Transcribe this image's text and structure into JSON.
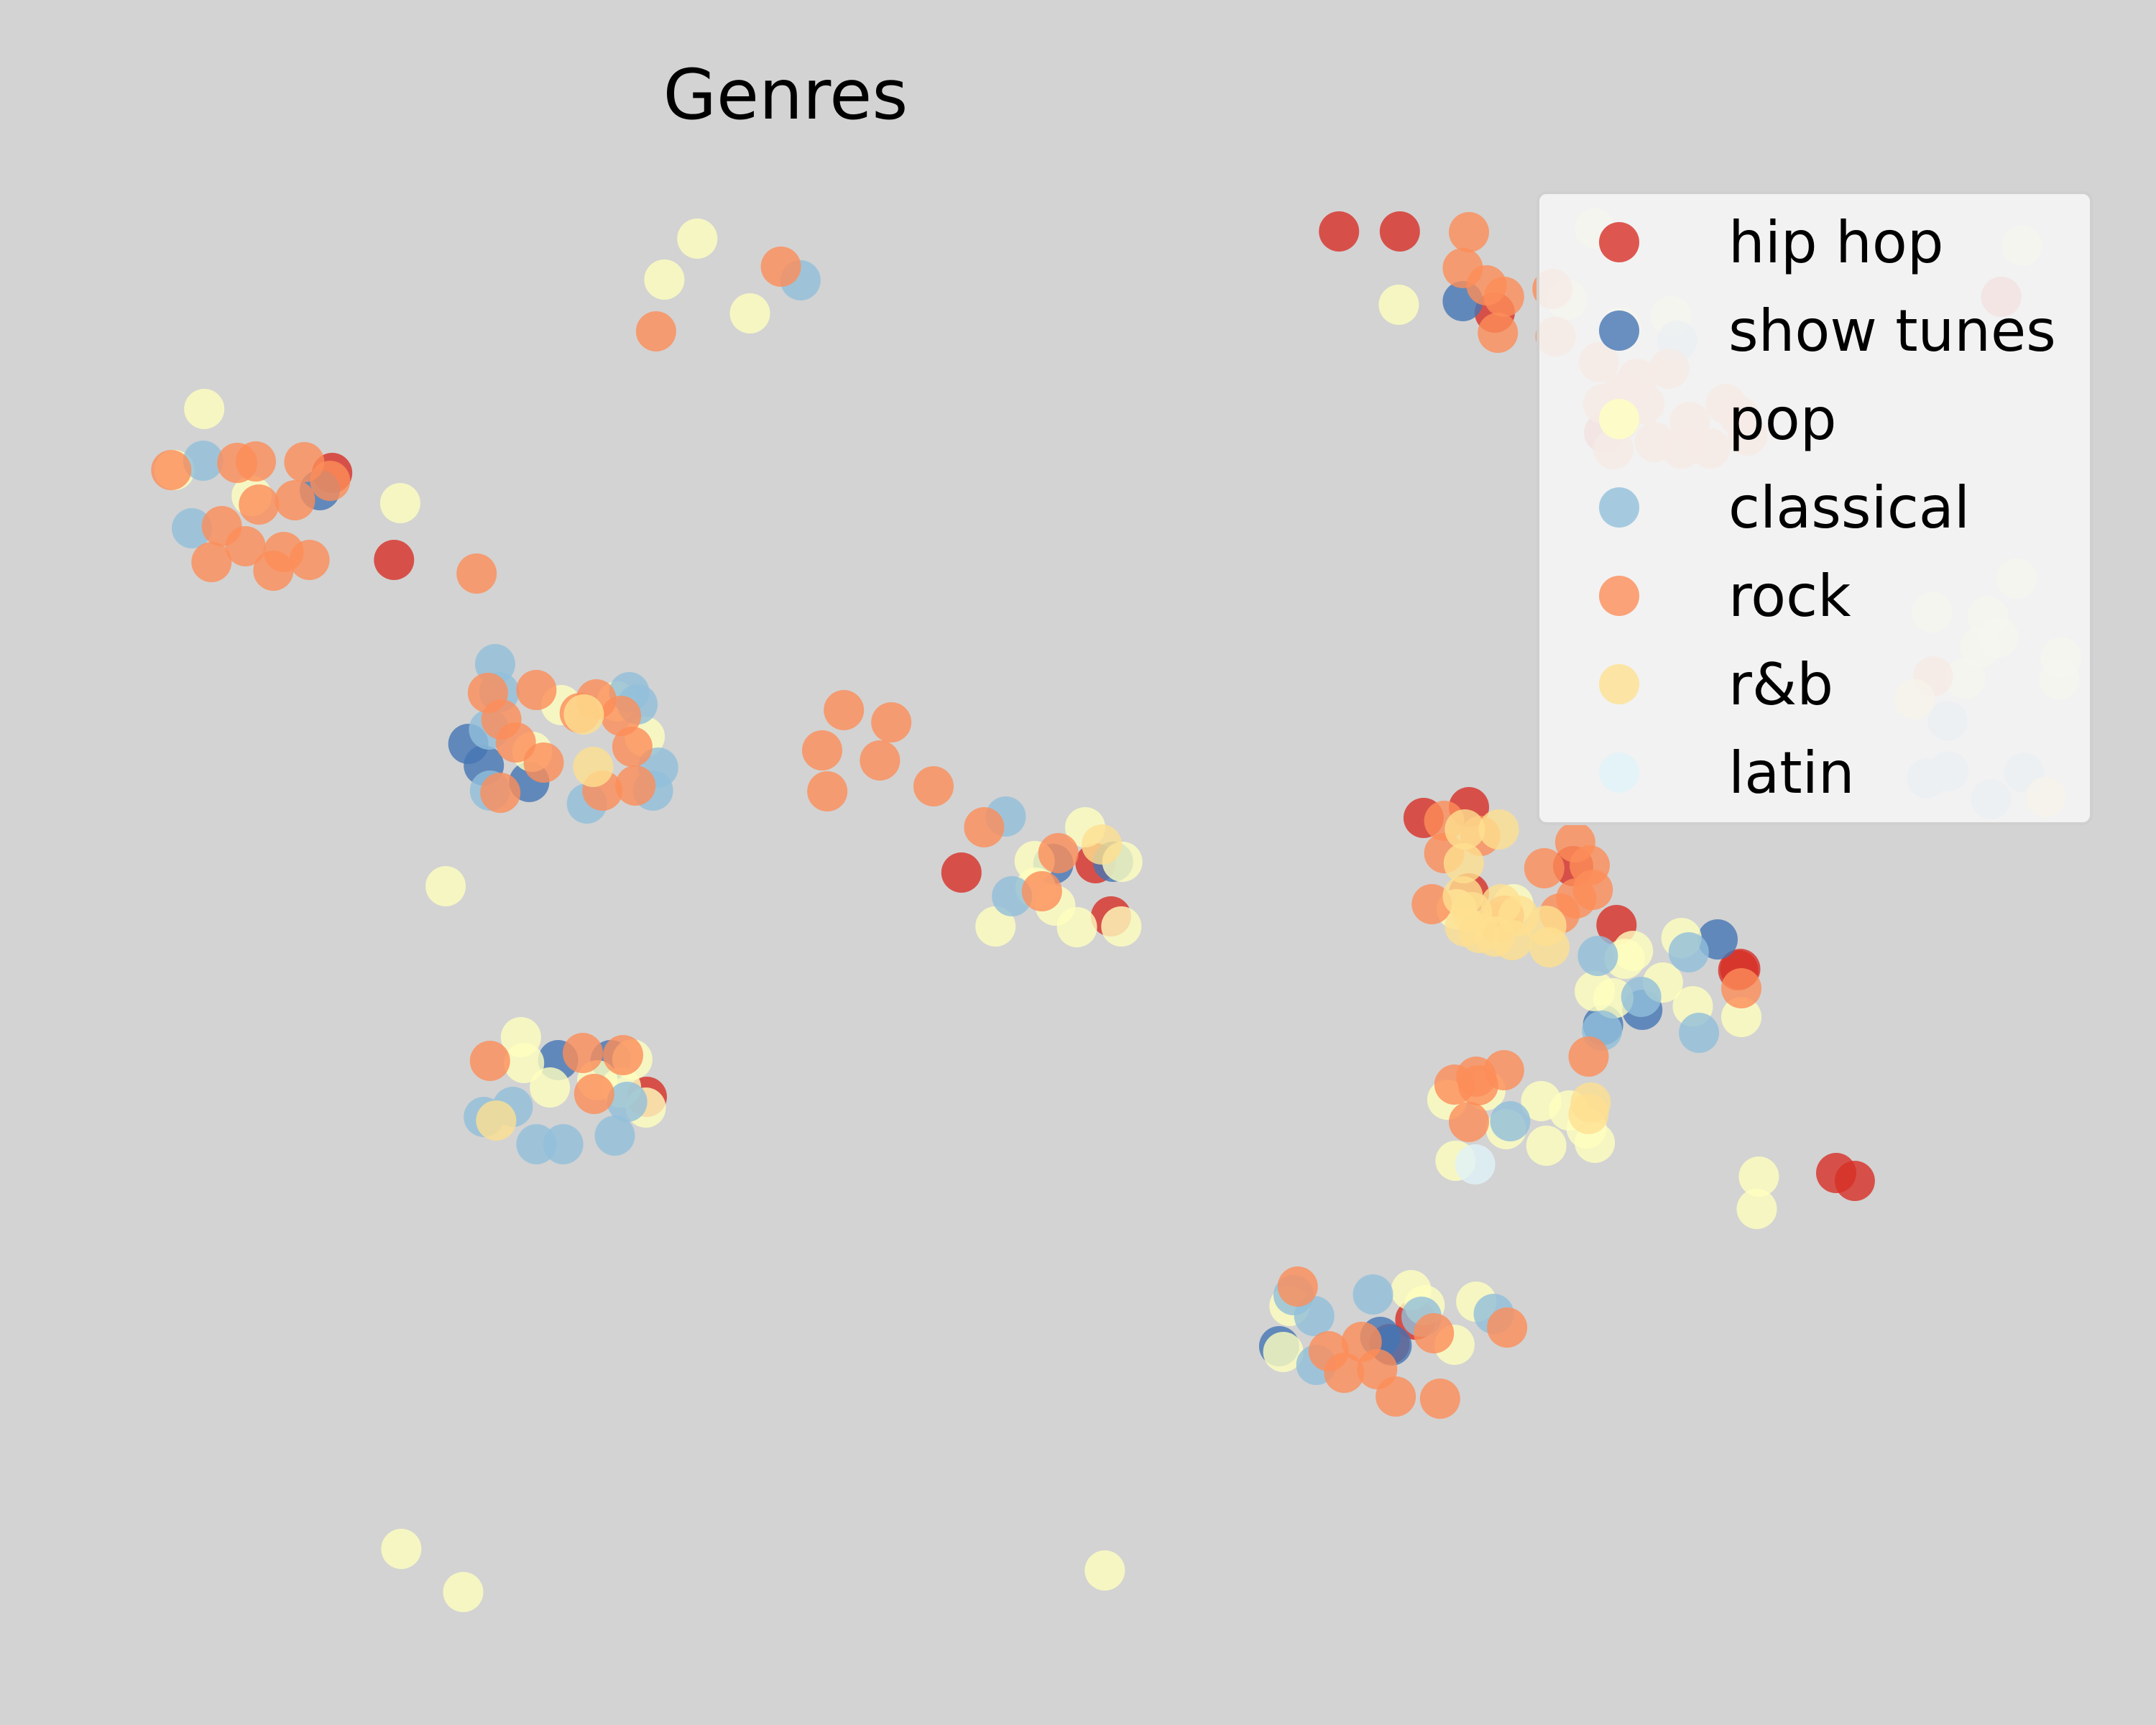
{
  "chart_data": {
    "type": "scatter",
    "title": "Genres",
    "xlabel": "",
    "ylabel": "",
    "xlim": [
      0,
      2090
    ],
    "ylim": [
      0,
      2400
    ],
    "axes_visible": false,
    "grid": false,
    "legend_position": "top-right",
    "background_color": "#d3d3d3",
    "series": [
      {
        "name": "hip hop",
        "color": "#d73027",
        "points": [
          [
            1298,
            2078
          ],
          [
            1357,
            2078
          ],
          [
            1940,
            1987
          ],
          [
            322,
            1742
          ],
          [
            382,
            1621
          ],
          [
            1555,
            1798
          ],
          [
            1449,
            1965
          ],
          [
            932,
            1186
          ],
          [
            1062,
            1199
          ],
          [
            1380,
            1262
          ],
          [
            1567,
            1113
          ],
          [
            1687,
            1052
          ],
          [
            627,
            874
          ],
          [
            1780,
            768
          ],
          [
            1798,
            757
          ],
          [
            1372,
            564
          ],
          [
            1424,
            1277
          ],
          [
            1424,
            1157
          ],
          [
            1077,
            1125
          ],
          [
            1525,
            1195
          ],
          [
            1685,
            1050
          ],
          [
            1347,
            530
          ]
        ]
      },
      {
        "name": "show tunes",
        "color": "#4575b4",
        "points": [
          [
            1418,
            1981
          ],
          [
            310,
            1718
          ],
          [
            454,
            1365
          ],
          [
            513,
            1312
          ],
          [
            1021,
            1198
          ],
          [
            1079,
            1201
          ],
          [
            1665,
            1093
          ],
          [
            1554,
            974
          ],
          [
            1592,
            995
          ],
          [
            592,
            925
          ],
          [
            541,
            925
          ],
          [
            1240,
            527
          ],
          [
            1338,
            540
          ],
          [
            1349,
            528
          ],
          [
            469,
            1335
          ]
        ]
      },
      {
        "name": "pop",
        "color": "#ffffbf",
        "points": [
          [
            676,
            2068
          ],
          [
            644,
            2011
          ],
          [
            727,
            1964
          ],
          [
            1546,
            2082
          ],
          [
            1960,
            2058
          ],
          [
            1356,
            1976
          ],
          [
            1519,
            1983
          ],
          [
            198,
            1831
          ],
          [
            388,
            1700
          ],
          [
            169,
            1746
          ],
          [
            1955,
            1595
          ],
          [
            1873,
            1548
          ],
          [
            1927,
            1542
          ],
          [
            1920,
            1500
          ],
          [
            1998,
            1485
          ],
          [
            1996,
            1455
          ],
          [
            1937,
            1513
          ],
          [
            1905,
            1456
          ],
          [
            432,
            1167
          ],
          [
            544,
            1419
          ],
          [
            516,
            1354
          ],
          [
            598,
            1424
          ],
          [
            625,
            1375
          ],
          [
            965,
            1111
          ],
          [
            1052,
            1249
          ],
          [
            1088,
            1201
          ],
          [
            1003,
            1202
          ],
          [
            1023,
            1140
          ],
          [
            1044,
            1110
          ],
          [
            1087,
            1111
          ],
          [
            1575,
            1066
          ],
          [
            1612,
            1033
          ],
          [
            1630,
            1095
          ],
          [
            1546,
            1021
          ],
          [
            1583,
            1077
          ],
          [
            1641,
            1000
          ],
          [
            1688,
            985
          ],
          [
            1564,
            1011
          ],
          [
            505,
            957
          ],
          [
            533,
            887
          ],
          [
            602,
            887
          ],
          [
            613,
            926
          ],
          [
            579,
            897
          ],
          [
            508,
            921
          ],
          [
            626,
            859
          ],
          [
            1403,
            870
          ],
          [
            1440,
            883
          ],
          [
            1494,
            868
          ],
          [
            1521,
            855
          ],
          [
            1538,
            830
          ],
          [
            1460,
            829
          ],
          [
            1499,
            806
          ],
          [
            1546,
            810
          ],
          [
            1411,
            785
          ],
          [
            1705,
            763
          ],
          [
            1703,
            718
          ],
          [
            1381,
            584
          ],
          [
            1431,
            589
          ],
          [
            1244,
            519
          ],
          [
            1368,
            605
          ],
          [
            1410,
            529
          ],
          [
            1250,
            583
          ],
          [
            389,
            245
          ],
          [
            449,
            185
          ],
          [
            1071,
            215
          ],
          [
            1620,
            1960
          ],
          [
            1571,
            1945
          ],
          [
            244,
            1710
          ],
          [
            1412,
            1135
          ],
          [
            1467,
            1142
          ],
          [
            1004,
            1165
          ]
        ]
      },
      {
        "name": "classical",
        "color": "#91bfdb",
        "points": [
          [
            776,
            2010
          ],
          [
            1626,
            1926
          ],
          [
            197,
            1759
          ],
          [
            186,
            1665
          ],
          [
            484,
            1437
          ],
          [
            610,
            1437
          ],
          [
            475,
            1300
          ],
          [
            633,
            1300
          ],
          [
            474,
            1385
          ],
          [
            569,
            1282
          ],
          [
            638,
            1332
          ],
          [
            975,
            1264
          ],
          [
            981,
            1153
          ],
          [
            1549,
            1070
          ],
          [
            1591,
            1013
          ],
          [
            1637,
            1075
          ],
          [
            1553,
            966
          ],
          [
            1647,
            963
          ],
          [
            1888,
            1397
          ],
          [
            1868,
            1317
          ],
          [
            1889,
            1327
          ],
          [
            1962,
            1325
          ],
          [
            1930,
            1288
          ],
          [
            480,
            1476
          ],
          [
            618,
            1420
          ],
          [
            520,
            808
          ],
          [
            546,
            808
          ],
          [
            596,
            820
          ],
          [
            608,
            867
          ],
          [
            469,
            846
          ],
          [
            497,
            860
          ],
          [
            1254,
            598
          ],
          [
            1331,
            599
          ],
          [
            1274,
            569
          ],
          [
            1276,
            501
          ],
          [
            1378,
            568
          ],
          [
            1448,
            572
          ],
          [
            1464,
            840
          ]
        ]
      },
      {
        "name": "rock",
        "color": "#fc8d59",
        "points": [
          [
            757,
            2029
          ],
          [
            636,
            1939
          ],
          [
            1424,
            2077
          ],
          [
            1418,
            2027
          ],
          [
            1441,
            2003
          ],
          [
            1458,
            1987
          ],
          [
            1452,
            1937
          ],
          [
            1508,
            1932
          ],
          [
            1505,
            1998
          ],
          [
            1550,
            1896
          ],
          [
            1587,
            1873
          ],
          [
            1618,
            1887
          ],
          [
            1594,
            1838
          ],
          [
            1554,
            1838
          ],
          [
            1673,
            1838
          ],
          [
            1686,
            1821
          ],
          [
            1694,
            1794
          ],
          [
            1604,
            1785
          ],
          [
            1630,
            1776
          ],
          [
            1564,
            1775
          ],
          [
            1570,
            1815
          ],
          [
            1572,
            1853
          ],
          [
            1638,
            1813
          ],
          [
            1658,
            1776
          ],
          [
            166,
            1746
          ],
          [
            230,
            1756
          ],
          [
            248,
            1758
          ],
          [
            295,
            1757
          ],
          [
            320,
            1731
          ],
          [
            286,
            1704
          ],
          [
            251,
            1698
          ],
          [
            215,
            1668
          ],
          [
            238,
            1640
          ],
          [
            275,
            1632
          ],
          [
            300,
            1621
          ],
          [
            205,
            1618
          ],
          [
            265,
            1606
          ],
          [
            462,
            1602
          ],
          [
            473,
            1436
          ],
          [
            520,
            1440
          ],
          [
            578,
            1427
          ],
          [
            602,
            1404
          ],
          [
            486,
            1399
          ],
          [
            562,
            1408
          ],
          [
            500,
            1367
          ],
          [
            613,
            1361
          ],
          [
            527,
            1339
          ],
          [
            485,
            1297
          ],
          [
            584,
            1300
          ],
          [
            616,
            1307
          ],
          [
            818,
            1412
          ],
          [
            864,
            1395
          ],
          [
            797,
            1356
          ],
          [
            853,
            1342
          ],
          [
            905,
            1306
          ],
          [
            802,
            1299
          ],
          [
            1874,
            1459
          ],
          [
            954,
            1249
          ],
          [
            1026,
            1213
          ],
          [
            1010,
            1160
          ],
          [
            1400,
            1258
          ],
          [
            1435,
            1237
          ],
          [
            1400,
            1213
          ],
          [
            1527,
            1228
          ],
          [
            1541,
            1196
          ],
          [
            1497,
            1192
          ],
          [
            1544,
            1162
          ],
          [
            1388,
            1142
          ],
          [
            1528,
            1150
          ],
          [
            1452,
            1117
          ],
          [
            1458,
            1126
          ],
          [
            1512,
            1129
          ],
          [
            1688,
            1025
          ],
          [
            475,
            924
          ],
          [
            565,
            935
          ],
          [
            576,
            878
          ],
          [
            604,
            932
          ],
          [
            1458,
            911
          ],
          [
            1540,
            930
          ],
          [
            1431,
            902
          ],
          [
            1410,
            891
          ],
          [
            1424,
            839
          ],
          [
            1258,
            610
          ],
          [
            1390,
            545
          ],
          [
            1303,
            490
          ],
          [
            1320,
            533
          ],
          [
            1288,
            520
          ],
          [
            1335,
            495
          ],
          [
            1353,
            457
          ],
          [
            1396,
            454
          ],
          [
            1461,
            553
          ],
          [
            1433,
            890
          ]
        ]
      },
      {
        "name": "r&b",
        "color": "#fee090",
        "points": [
          [
            566,
            1406
          ],
          [
            575,
            1333
          ],
          [
            1068,
            1225
          ],
          [
            1420,
            1246
          ],
          [
            1453,
            1246
          ],
          [
            1419,
            1199
          ],
          [
            1418,
            1153
          ],
          [
            1427,
            1131
          ],
          [
            1434,
            1102
          ],
          [
            1449,
            1097
          ],
          [
            1466,
            1092
          ],
          [
            1499,
            1112
          ],
          [
            1472,
            1126
          ],
          [
            1455,
            1142
          ],
          [
            1502,
            1082
          ],
          [
            1856,
            1427
          ],
          [
            1983,
            1291
          ],
          [
            481,
            841
          ],
          [
            1540,
            850
          ],
          [
            1542,
            866
          ],
          [
            1420,
            1111
          ]
        ]
      },
      {
        "name": "latin",
        "color": "#e0f3f8",
        "points": [
          [
            1430,
            780
          ]
        ]
      }
    ]
  }
}
